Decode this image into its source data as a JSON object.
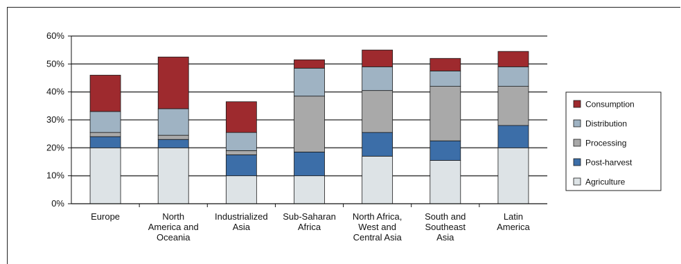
{
  "chart_data": {
    "type": "bar",
    "stacked": true,
    "categories": [
      [
        "Europe"
      ],
      [
        "North",
        "America and",
        "Oceania"
      ],
      [
        "Industrialized",
        "Asia"
      ],
      [
        "Sub-Saharan",
        "Africa"
      ],
      [
        "North Africa,",
        "West and",
        "Central Asia"
      ],
      [
        "South and",
        "Southeast",
        "Asia"
      ],
      [
        "Latin",
        "America"
      ]
    ],
    "series": [
      {
        "name": "Agriculture",
        "color": "#dde3e6",
        "values": [
          20,
          20,
          10,
          10,
          17,
          15.5,
          20
        ]
      },
      {
        "name": "Post-harvest",
        "color": "#3c6ea8",
        "values": [
          4,
          3,
          7.5,
          8.5,
          8.5,
          7,
          8
        ]
      },
      {
        "name": "Processing",
        "color": "#a9a9a9",
        "values": [
          1.5,
          1.5,
          1.5,
          20,
          15,
          19.5,
          14
        ]
      },
      {
        "name": "Distribution",
        "color": "#9fb3c3",
        "values": [
          7.5,
          9.5,
          6.5,
          10,
          8.5,
          5.5,
          7
        ]
      },
      {
        "name": "Consumption",
        "color": "#9e2a2e",
        "values": [
          13,
          18.5,
          11,
          3,
          6,
          4.5,
          5.5
        ]
      }
    ],
    "ylim": [
      0,
      60
    ],
    "yticks": [
      "0%",
      "10%",
      "20%",
      "30%",
      "40%",
      "50%",
      "60%"
    ],
    "grid": true,
    "legend_position": "right",
    "legend_order": [
      "Consumption",
      "Distribution",
      "Processing",
      "Post-harvest",
      "Agriculture"
    ]
  }
}
